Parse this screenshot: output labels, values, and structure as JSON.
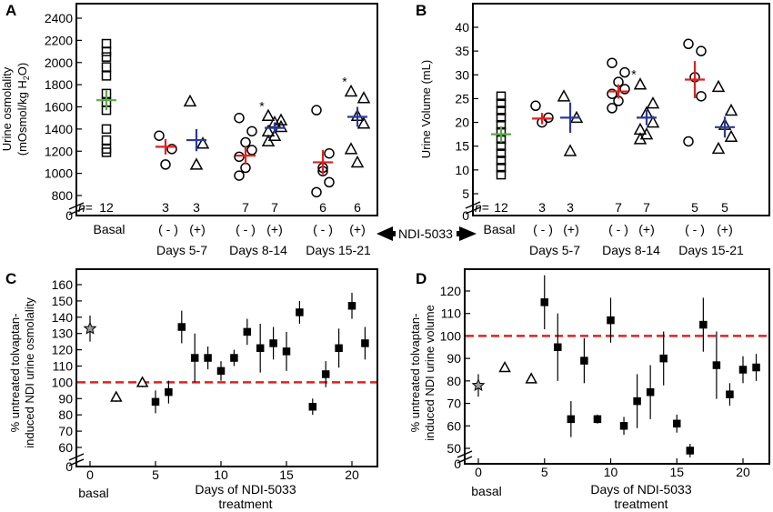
{
  "panels": {
    "A": {
      "letter": "A",
      "ylabel_line1": "Urine osmolality",
      "ylabel_line2": "(mOsmol/kg H",
      "ylabel_sub": "2",
      "ylabel_end": "O)",
      "n_prefix": "n",
      "n_eq": "=",
      "counts": [
        "12",
        "3",
        "3",
        "7",
        "7",
        "6",
        "6"
      ],
      "signs": [
        "( - )",
        "(+)",
        "( - )",
        "(+)",
        "( - )",
        "(+)"
      ],
      "groups": [
        "Basal",
        "Days 5-7",
        "Days 8-14",
        "Days 15-21"
      ],
      "star": "*"
    },
    "B": {
      "letter": "B",
      "ylabel": "Urine Volume (mL)",
      "n_prefix": "n",
      "n_eq": "=",
      "counts": [
        "12",
        "3",
        "3",
        "7",
        "7",
        "5",
        "5"
      ],
      "signs": [
        "( - )",
        "(+)",
        "( - )",
        "(+)",
        "( - )",
        "(+)"
      ],
      "groups": [
        "Basal",
        "Days 5-7",
        "Days 8-14",
        "Days 15-21"
      ],
      "star": "*"
    },
    "C": {
      "letter": "C",
      "ylabel_line1": "% untreated tolvaptan-",
      "ylabel_line2": "induced NDI urine osmolality",
      "xlabel_line1": "Days of NDI-5033",
      "xlabel_line2": "treatment",
      "basal_label": "basal"
    },
    "D": {
      "letter": "D",
      "ylabel_line1": "% untreated tolvaptan-",
      "ylabel_line2": "induced NDI urine volume",
      "xlabel_line1": "Days of NDI-5033",
      "xlabel_line2": "treatment",
      "basal_label": "basal"
    }
  },
  "middle_label": "NDI-5033",
  "colors": {
    "basal_mean": "#5fa84a",
    "untreated_mean": "#e02020",
    "treated_mean": "#2a3a9c",
    "reference_line": "#e02020",
    "basal_marker": "#9a9a9a"
  },
  "chart_data": [
    {
      "panel": "A",
      "type": "scatter",
      "ylim": [
        800,
        2400
      ],
      "y_break": true,
      "yticks": [
        0,
        800,
        1000,
        1200,
        1400,
        1600,
        1800,
        2000,
        2200,
        2400
      ],
      "groups": [
        {
          "name": "Basal",
          "condition": "basal",
          "marker": "square",
          "points": [
            2170,
            2100,
            2050,
            1960,
            1880,
            1720,
            1640,
            1570,
            1400,
            1300,
            1220,
            1190
          ],
          "mean": 1660,
          "sem": 90
        },
        {
          "name": "Days 5-7",
          "condition": "(-)",
          "marker": "circle",
          "points": [
            1340,
            1220,
            1080
          ],
          "mean": 1240,
          "sem": 70
        },
        {
          "name": "Days 5-7",
          "condition": "(+)",
          "marker": "triangle",
          "points": [
            1650,
            1270,
            1080
          ],
          "mean": 1300,
          "sem": 100
        },
        {
          "name": "Days 8-14",
          "condition": "(-)",
          "marker": "circle",
          "points": [
            1500,
            1380,
            1280,
            1210,
            1150,
            1050,
            980
          ],
          "mean": 1160,
          "sem": 80
        },
        {
          "name": "Days 8-14",
          "condition": "(+)",
          "marker": "triangle",
          "points": [
            1520,
            1480,
            1460,
            1420,
            1380,
            1340,
            1290
          ],
          "mean": 1410,
          "sem": 50,
          "significant": true
        },
        {
          "name": "Days 15-21",
          "condition": "(-)",
          "marker": "circle",
          "points": [
            1570,
            1180,
            1050,
            920,
            830,
            1020
          ],
          "mean": 1100,
          "sem": 110
        },
        {
          "name": "Days 15-21",
          "condition": "(+)",
          "marker": "triangle",
          "points": [
            1740,
            1680,
            1520,
            1450,
            1220,
            1100
          ],
          "mean": 1510,
          "sem": 90,
          "significant": true
        }
      ]
    },
    {
      "panel": "B",
      "type": "scatter",
      "ylim": [
        5,
        40
      ],
      "y_break": true,
      "yticks": [
        0,
        5,
        10,
        15,
        20,
        25,
        30,
        35,
        40
      ],
      "groups": [
        {
          "name": "Basal",
          "condition": "basal",
          "marker": "square",
          "points": [
            25.5,
            24,
            22.5,
            21,
            19.5,
            18,
            16.5,
            15,
            13.5,
            12,
            10.5,
            9
          ],
          "mean": 17.5,
          "sem": 1.7
        },
        {
          "name": "Days 5-7",
          "condition": "(-)",
          "marker": "circle",
          "points": [
            23.5,
            21,
            20
          ],
          "mean": 20.8,
          "sem": 1.2
        },
        {
          "name": "Days 5-7",
          "condition": "(+)",
          "marker": "triangle",
          "points": [
            25.5,
            21,
            14
          ],
          "mean": 21,
          "sem": 3.2
        },
        {
          "name": "Days 8-14",
          "condition": "(-)",
          "marker": "circle",
          "points": [
            32.5,
            30.5,
            28.5,
            27,
            26,
            24.5,
            23
          ],
          "mean": 26.5,
          "sem": 1.5
        },
        {
          "name": "Days 8-14",
          "condition": "(+)",
          "marker": "triangle",
          "points": [
            28,
            24,
            22,
            20,
            18.5,
            17.5,
            16.5
          ],
          "mean": 21,
          "sem": 1.6,
          "significant": true
        },
        {
          "name": "Days 15-21",
          "condition": "(-)",
          "marker": "circle",
          "points": [
            36.5,
            35,
            29.5,
            25.5,
            16
          ],
          "mean": 29,
          "sem": 3.9
        },
        {
          "name": "Days 15-21",
          "condition": "(+)",
          "marker": "triangle",
          "points": [
            27.5,
            22.5,
            19.5,
            17,
            14.5
          ],
          "mean": 19,
          "sem": 2.2
        }
      ]
    },
    {
      "panel": "C",
      "type": "scatter",
      "xlim": [
        -1,
        22
      ],
      "ylim": [
        60,
        160
      ],
      "y_break": true,
      "x_break": true,
      "xticks": [
        0,
        5,
        10,
        15,
        20
      ],
      "yticks": [
        0,
        60,
        70,
        80,
        90,
        100,
        110,
        120,
        130,
        140,
        150,
        160
      ],
      "reference_line": 100,
      "points": [
        {
          "x": 0,
          "y": 133,
          "err": 8,
          "marker": "star"
        },
        {
          "x": 2,
          "y": 91,
          "err": 3,
          "marker": "triangle"
        },
        {
          "x": 4,
          "y": 100,
          "err": 3,
          "marker": "triangle"
        },
        {
          "x": 5,
          "y": 88,
          "err": 7,
          "marker": "square"
        },
        {
          "x": 6,
          "y": 94,
          "err": 7,
          "marker": "square"
        },
        {
          "x": 7,
          "y": 134,
          "err": 10,
          "marker": "square"
        },
        {
          "x": 8,
          "y": 115,
          "err": 15,
          "marker": "square"
        },
        {
          "x": 9,
          "y": 115,
          "err": 7,
          "marker": "square"
        },
        {
          "x": 10,
          "y": 107,
          "err": 6,
          "marker": "square"
        },
        {
          "x": 11,
          "y": 115,
          "err": 5,
          "marker": "square"
        },
        {
          "x": 12,
          "y": 131,
          "err": 8,
          "marker": "square"
        },
        {
          "x": 13,
          "y": 121,
          "err": 15,
          "marker": "square"
        },
        {
          "x": 14,
          "y": 124,
          "err": 10,
          "marker": "square"
        },
        {
          "x": 15,
          "y": 119,
          "err": 12,
          "marker": "square"
        },
        {
          "x": 16,
          "y": 143,
          "err": 7,
          "marker": "square"
        },
        {
          "x": 17,
          "y": 85,
          "err": 5,
          "marker": "square"
        },
        {
          "x": 18,
          "y": 105,
          "err": 8,
          "marker": "square"
        },
        {
          "x": 19,
          "y": 121,
          "err": 12,
          "marker": "square"
        },
        {
          "x": 20,
          "y": 147,
          "err": 8,
          "marker": "square"
        },
        {
          "x": 21,
          "y": 124,
          "err": 10,
          "marker": "square"
        }
      ]
    },
    {
      "panel": "D",
      "type": "scatter",
      "xlim": [
        -1,
        22
      ],
      "ylim": [
        50,
        120
      ],
      "y_break": true,
      "x_break": true,
      "xticks": [
        0,
        5,
        10,
        15,
        20
      ],
      "yticks": [
        0,
        50,
        60,
        70,
        80,
        90,
        100,
        110,
        120
      ],
      "reference_line": 100,
      "points": [
        {
          "x": 0,
          "y": 78,
          "err": 5,
          "marker": "star"
        },
        {
          "x": 2,
          "y": 86,
          "err": 2,
          "marker": "triangle"
        },
        {
          "x": 4,
          "y": 81,
          "err": 2,
          "marker": "triangle"
        },
        {
          "x": 5,
          "y": 115,
          "err": 12,
          "marker": "square"
        },
        {
          "x": 6,
          "y": 95,
          "err": 15,
          "marker": "square"
        },
        {
          "x": 7,
          "y": 63,
          "err": 8,
          "marker": "square"
        },
        {
          "x": 8,
          "y": 89,
          "err": 10,
          "marker": "square"
        },
        {
          "x": 9,
          "y": 63,
          "err": 2,
          "marker": "square"
        },
        {
          "x": 10,
          "y": 107,
          "err": 10,
          "marker": "square"
        },
        {
          "x": 11,
          "y": 60,
          "err": 4,
          "marker": "square"
        },
        {
          "x": 12,
          "y": 71,
          "err": 12,
          "marker": "square"
        },
        {
          "x": 13,
          "y": 75,
          "err": 12,
          "marker": "square"
        },
        {
          "x": 14,
          "y": 90,
          "err": 12,
          "marker": "square"
        },
        {
          "x": 15,
          "y": 61,
          "err": 4,
          "marker": "square"
        },
        {
          "x": 16,
          "y": 49,
          "err": 3,
          "marker": "square"
        },
        {
          "x": 17,
          "y": 105,
          "err": 12,
          "marker": "square"
        },
        {
          "x": 18,
          "y": 87,
          "err": 15,
          "marker": "square"
        },
        {
          "x": 19,
          "y": 74,
          "err": 5,
          "marker": "square"
        },
        {
          "x": 20,
          "y": 85,
          "err": 6,
          "marker": "square"
        },
        {
          "x": 21,
          "y": 86,
          "err": 6,
          "marker": "square"
        }
      ]
    }
  ]
}
